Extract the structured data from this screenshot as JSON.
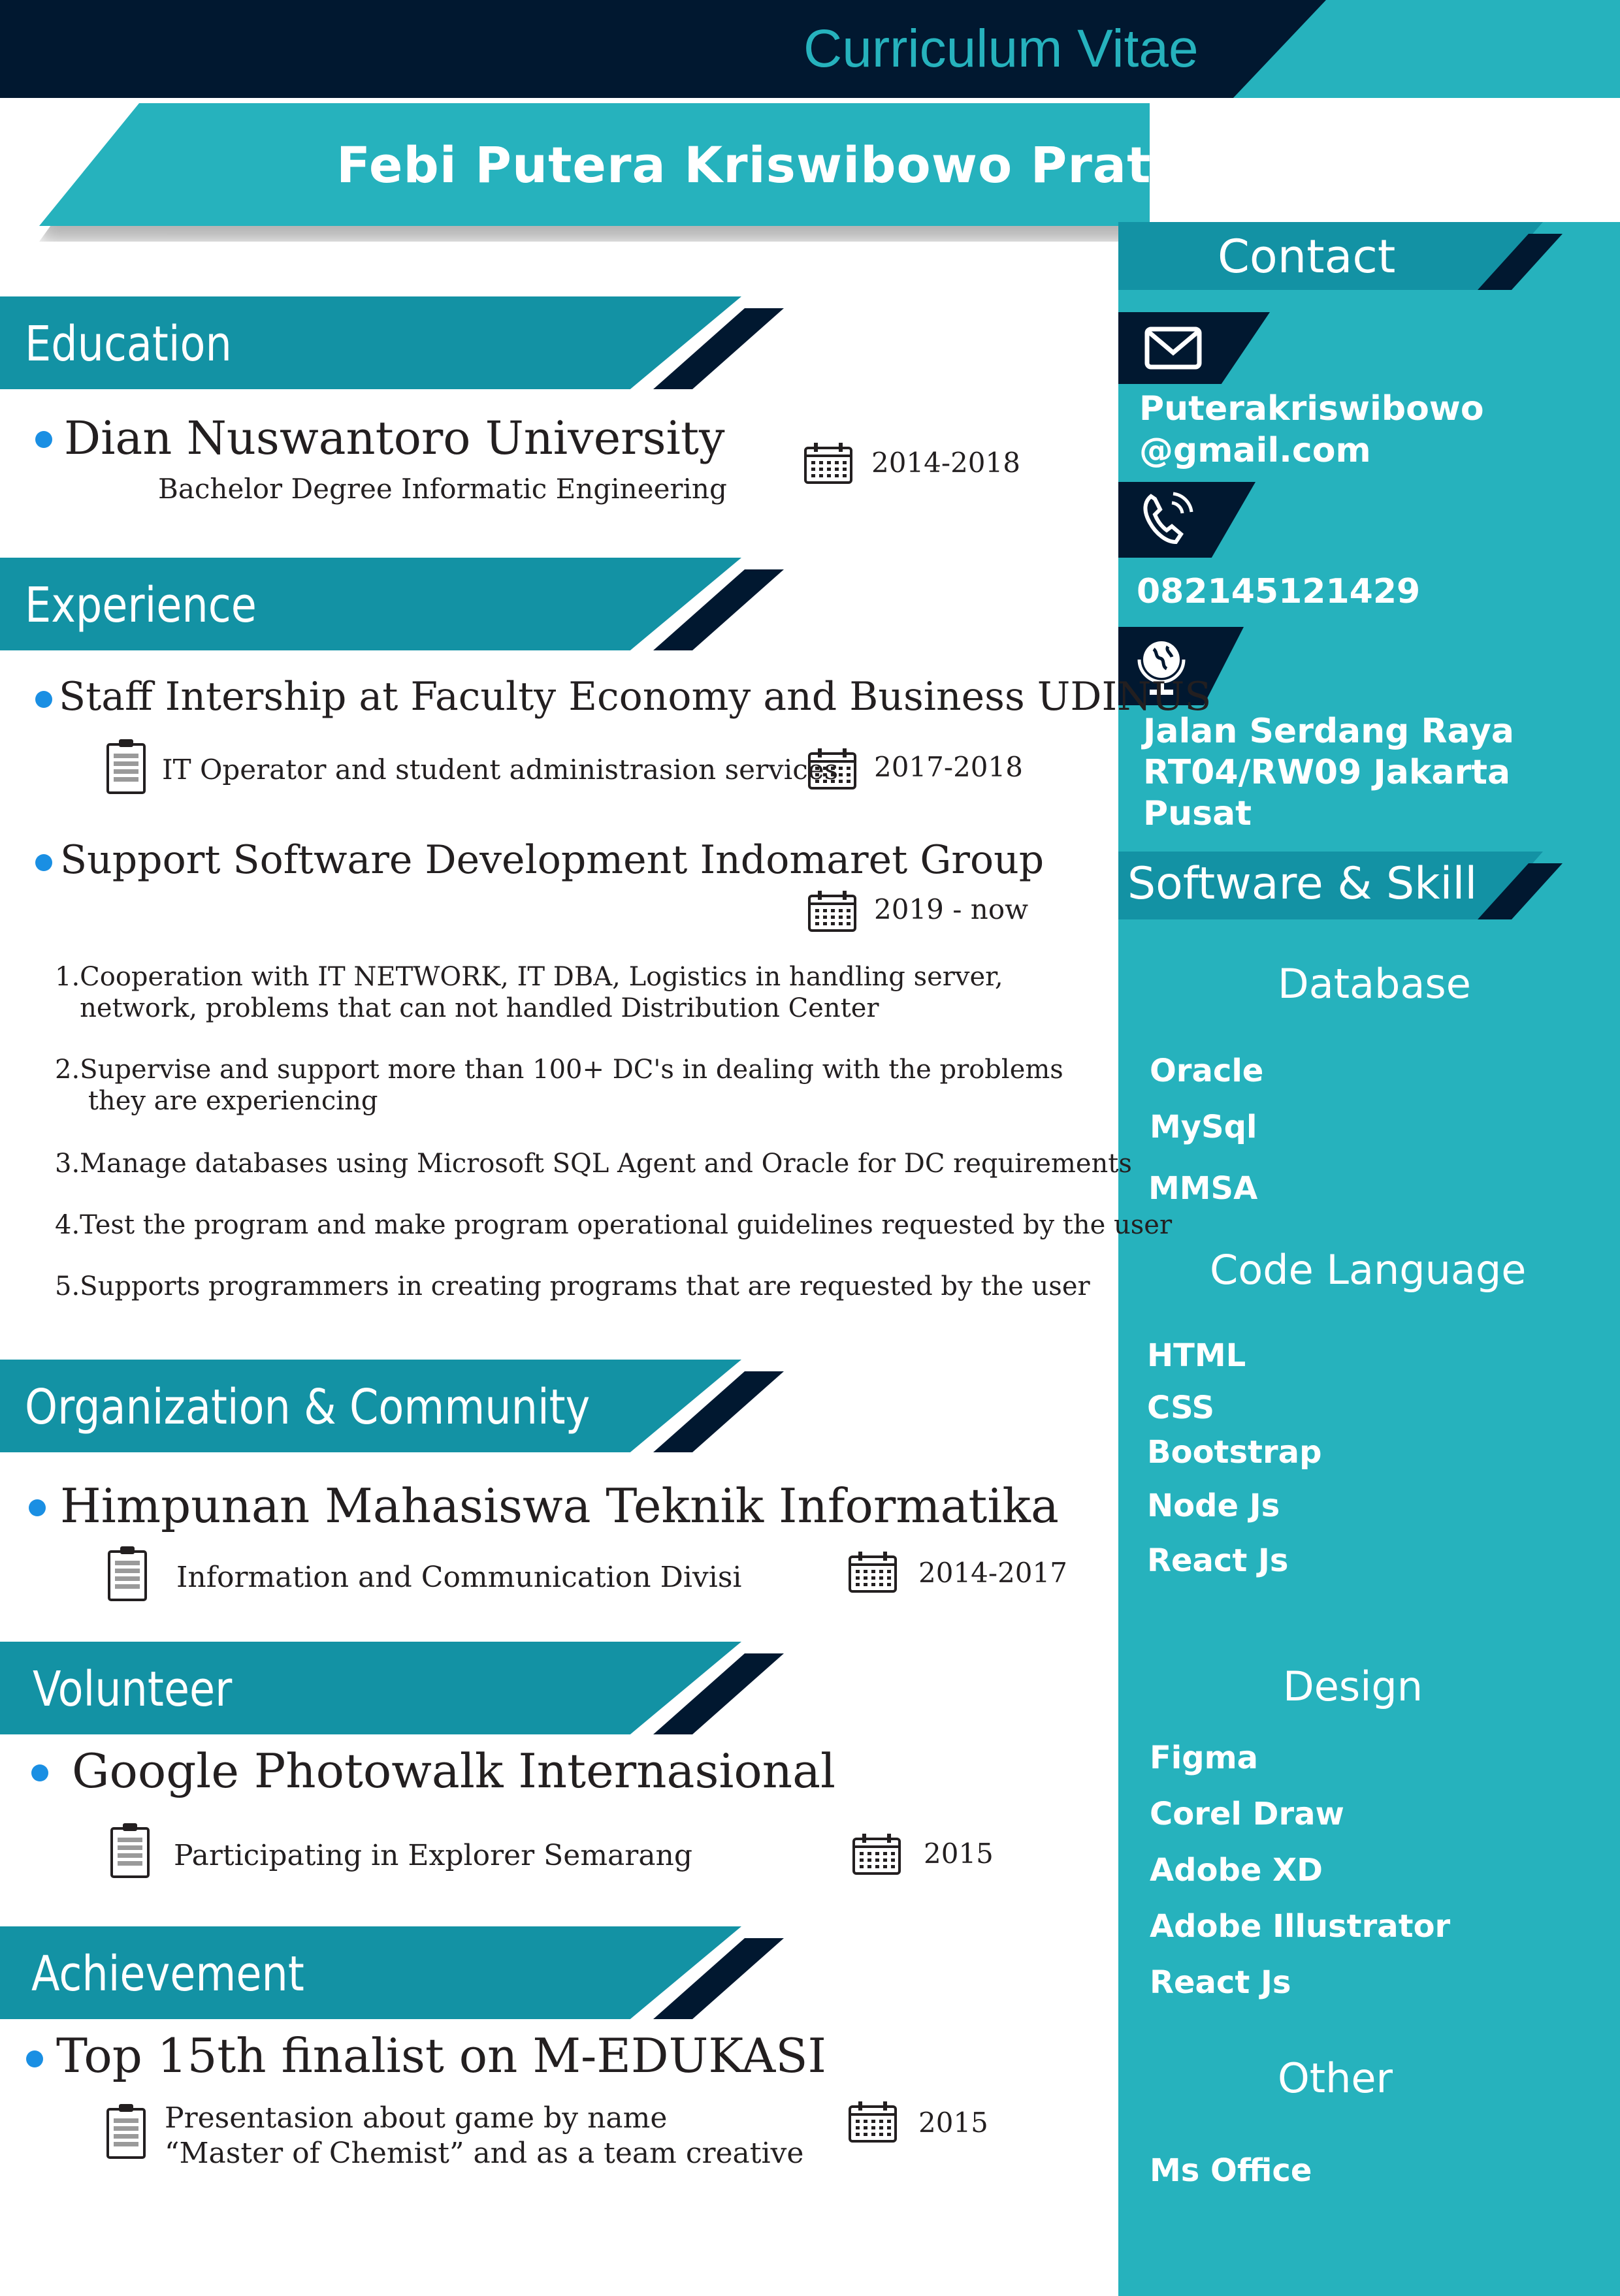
{
  "header": {
    "title": "Curriculum Vitae",
    "name": "Febi Putera Kriswibowo Pratama"
  },
  "colors": {
    "navy": "#011830",
    "teal": "#1392a4",
    "cyan": "#26b2bd",
    "bullet": "#1a8fe3"
  },
  "contact": {
    "heading": "Contact",
    "email_icon": "envelope-icon",
    "email_line1": "Puterakriswibowo",
    "email_line2": "@gmail.com",
    "phone_icon": "phone-icon",
    "phone": "082145121429",
    "address_icon": "globe-icon",
    "address_line1": "Jalan Serdang Raya",
    "address_line2": "RT04/RW09 Jakarta",
    "address_line3": "Pusat"
  },
  "skills": {
    "heading": "Software & Skill",
    "database": {
      "title": "Database",
      "items": [
        "Oracle",
        "MySql",
        "MMSA"
      ]
    },
    "code": {
      "title": "Code Language",
      "items": [
        "HTML",
        "CSS",
        "Bootstrap",
        "Node Js",
        "React Js"
      ]
    },
    "design": {
      "title": "Design",
      "items": [
        "Figma",
        "Corel Draw",
        "Adobe XD",
        "Adobe Illustrator",
        "React Js"
      ]
    },
    "other": {
      "title": "Other",
      "items": [
        "Ms Office"
      ]
    }
  },
  "education": {
    "heading": "Education",
    "school": "Dian Nuswantoro University",
    "degree": "Bachelor Degree Informatic Engineering",
    "years": "2014-2018"
  },
  "experience": {
    "heading": "Experience",
    "job1": {
      "title": "Staff Intership at Faculty Economy and Business UDINUS",
      "role": "IT Operator and student administrasion services",
      "years": "2017-2018"
    },
    "job2": {
      "title": "Support Software Development Indomaret Group",
      "years": "2019 - now",
      "duties": [
        "1.Cooperation with IT NETWORK, IT DBA, Logistics in handling server,\n   network, problems that can not handled Distribution Center",
        "2.Supervise and support more than 100+ DC's in dealing with the problems\n    they are experiencing",
        "3.Manage databases using Microsoft SQL Agent and Oracle for DC requirements",
        "4.Test the program and make program operational guidelines requested by the user",
        "5.Supports programmers in creating programs that are requested by the user"
      ]
    }
  },
  "organization": {
    "heading": "Organization & Community",
    "name": "Himpunan Mahasiswa Teknik Informatika",
    "division": "Information and Communication Divisi",
    "years": "2014-2017"
  },
  "volunteer": {
    "heading": "Volunteer",
    "name": "Google Photowalk Internasional",
    "detail": "Participating in Explorer Semarang",
    "years": "2015"
  },
  "achievement": {
    "heading": "Achievement",
    "name": "Top 15th finalist on M-EDUKASI",
    "detail_line1": "Presentasion about game by name",
    "detail_line2": "“Master of Chemist” and as a team creative",
    "years": "2015"
  }
}
